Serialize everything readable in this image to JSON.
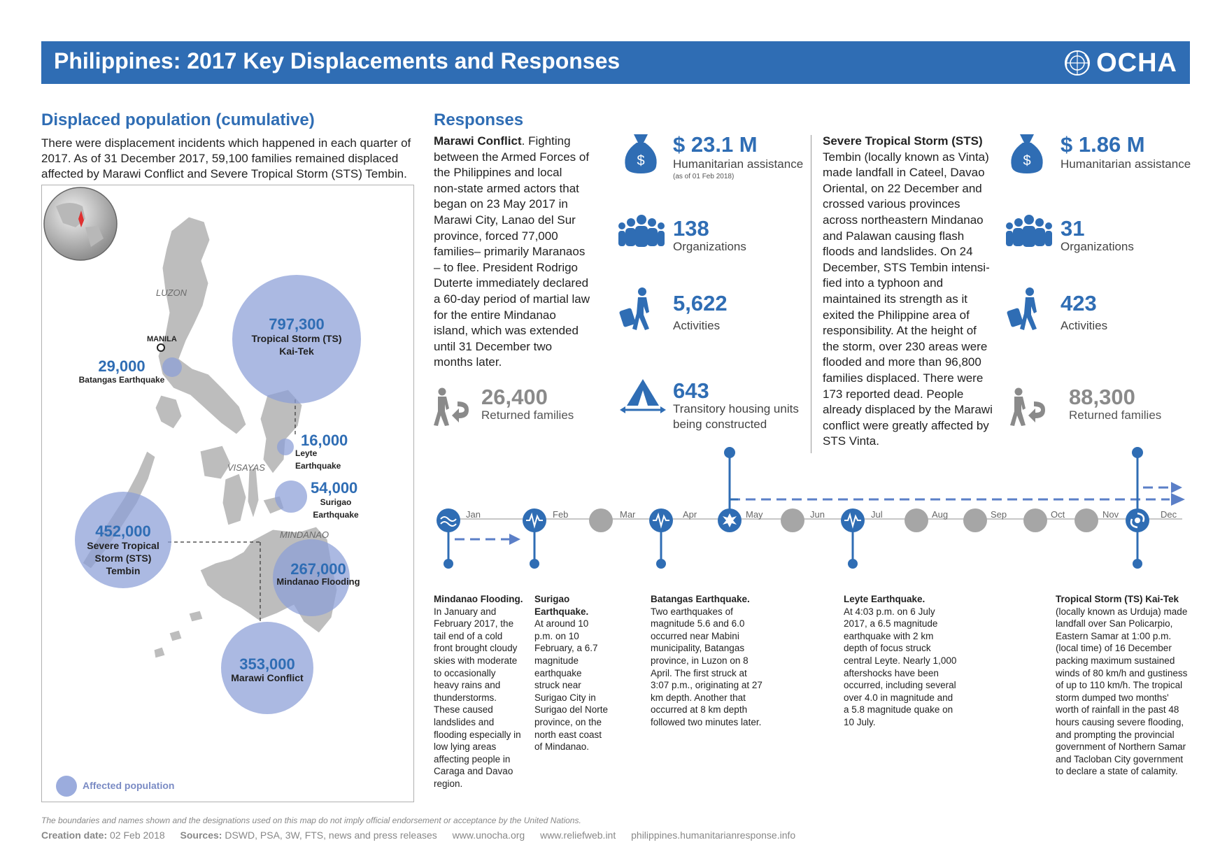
{
  "header": {
    "title": "Philippines: 2017 Key Displacements and Responses",
    "logo_text": "OCHA"
  },
  "displaced": {
    "heading": "Displaced population (cumulative)",
    "intro": "There were displacement incidents which happened in each quarter of 2017. As of 31 December 2017, 59,100 families remained displaced affected by Marawi Conflict  and Severe Tropical Storm (STS) Tembin."
  },
  "map": {
    "regions": {
      "luzon": "LUZON",
      "visayas": "VISAYAS",
      "mindanao": "MINDANAO"
    },
    "manila_label": "MANILA",
    "bubbles": [
      {
        "value": "797,300",
        "label": "Tropical Storm (TS) Kai-Tek"
      },
      {
        "value": "29,000",
        "label": "Batangas Earthquake"
      },
      {
        "value": "16,000",
        "label": "Leyte Earthquake"
      },
      {
        "value": "54,000",
        "label": "Surigao Earthquake"
      },
      {
        "value": "452,000",
        "label": "Severe Tropical Storm (STS) Tembin"
      },
      {
        "value": "267,000",
        "label": "Mindanao Flooding"
      },
      {
        "value": "353,000",
        "label": "Marawi Conflict"
      }
    ],
    "legend_label": "Affected population"
  },
  "responses": {
    "heading": "Responses",
    "marawi": {
      "title": "Marawi Conflict",
      "text_lines": [
        "Marawi Conflict. Fighting",
        "between the Armed Forces of",
        "the Philippines and local",
        "non-state armed actors that",
        "began on 23 May 2017 in",
        "Marawi City, Lanao del Sur",
        "province, forced 77,000",
        "families– primarily Maranaos",
        "– to flee.  President Rodrigo",
        "Duterte immediately declared",
        "a 60-day period of martial law",
        "for the entire Mindanao",
        "island, which was extended",
        "until 31 December two",
        "months later."
      ],
      "funding_value": "$ 23.1 M",
      "funding_label": "Humanitarian assistance",
      "funding_note": "(as of 01 Feb 2018)",
      "organizations_value": "138",
      "organizations_label": "Organizations",
      "activities_value": "5,622",
      "activities_label": "Activities",
      "housing_value": "643",
      "housing_label_1": "Transitory housing units",
      "housing_label_2": "being constructed",
      "returned_value": "26,400",
      "returned_label": "Returned families"
    },
    "tembin": {
      "text_lines": [
        "Severe Tropical Storm (STS)",
        "Tembin (locally known as Vinta)",
        "made landfall in Cateel, Davao",
        "Oriental, on 22 December and",
        "crossed various provinces",
        "across northeastern Mindanao",
        "and Palawan causing flash",
        "floods and landslides. On 24",
        "December, STS Tembin intensi-",
        "fied into a typhoon and",
        "maintained its strength as it",
        "exited the Philippine area of",
        "responsibility.  At the height of",
        "the storm, over 230 areas were",
        "flooded and more than 96,800",
        "families displaced. There were",
        "173 reported dead. People",
        "already displaced by the Marawi",
        "conflict were greatly affected by",
        "STS Vinta."
      ],
      "funding_value": "$ 1.86 M",
      "funding_label": "Humanitarian assistance",
      "organizations_value": "31",
      "organizations_label": "Organizations",
      "activities_value": "423",
      "activities_label": "Activities",
      "returned_value": "88,300",
      "returned_label": "Returned families"
    }
  },
  "timeline": {
    "months": [
      "Jan",
      "Feb",
      "Mar",
      "Apr",
      "May",
      "Jun",
      "Jul",
      "Aug",
      "Sep",
      "Oct",
      "Nov",
      "Dec"
    ]
  },
  "events": {
    "mindanao_flooding": {
      "title": "Mindanao Flooding.",
      "lines": [
        "In January and",
        "February 2017, the",
        "tail end of a cold",
        "front brought cloudy",
        "skies with moderate",
        "to occasionally",
        "heavy rains and",
        "thunderstorms.",
        "These caused",
        "landslides and",
        "flooding especially in",
        "low lying areas",
        "affecting people in",
        "Caraga and Davao",
        "region."
      ]
    },
    "surigao": {
      "title_1": "Surigao",
      "title_2": "Earthquake.",
      "lines": [
        "At around 10",
        "p.m. on 10",
        "February, a 6.7",
        "magnitude",
        "earthquake",
        "struck near",
        "Surigao City in",
        "Surigao del Norte",
        "province, on the",
        "north east coast",
        "of Mindanao."
      ]
    },
    "batangas": {
      "title": "Batangas Earthquake.",
      "lines": [
        "Two earthquakes of",
        "magnitude 5.6 and 6.0",
        "occurred near Mabini",
        "municipality, Batangas",
        "province, in Luzon on 8",
        "April. The first struck at",
        "3:07 p.m., originating at 27",
        "km depth. Another that",
        "occurred at 8 km depth",
        "followed two minutes later."
      ]
    },
    "leyte": {
      "title": "Leyte Earthquake.",
      "lines": [
        "At 4:03 p.m. on 6 July",
        "2017, a 6.5 magnitude",
        "earthquake with 2 km",
        "depth of focus struck",
        "central Leyte. Nearly 1,000",
        "aftershocks have been",
        "occurred, including several",
        "over 4.0 in magnitude and",
        "a 5.8 magnitude quake on",
        "10 July."
      ]
    },
    "kaitek": {
      "title": "Tropical Storm (TS) Kai-Tek",
      "lines": [
        "(locally known as Urduja) made",
        "landfall over San Policarpio,",
        "Eastern Samar at 1:00 p.m.",
        "(local time) of 16 December",
        "packing maximum sustained",
        "winds of 80 km/h and gustiness",
        "of up to 110 km/h. The tropical",
        "storm dumped two months'",
        "worth of rainfall in the past 48",
        "hours causing severe flooding,",
        "and prompting the provincial",
        "government of Northern Samar",
        "and Tacloban City government",
        "to declare a state of calamity."
      ]
    }
  },
  "footer": {
    "disclaimer": "The boundaries and names shown and the designations used on this map do not imply official endorsement or acceptance by the United Nations.",
    "creation_label": "Creation date:",
    "creation_value": "02 Feb  2018",
    "sources_label": "Sources:",
    "sources_value": "DSWD, PSA, 3W, FTS, news and press releases",
    "link1": "www.unocha.org",
    "link2": "www.reliefweb.int",
    "link3": "philippines.humanitarianresponse.info"
  },
  "colors": {
    "primary": "#2f6db4",
    "bubble": "#8a9ed7",
    "grey": "#a6a6a6"
  }
}
